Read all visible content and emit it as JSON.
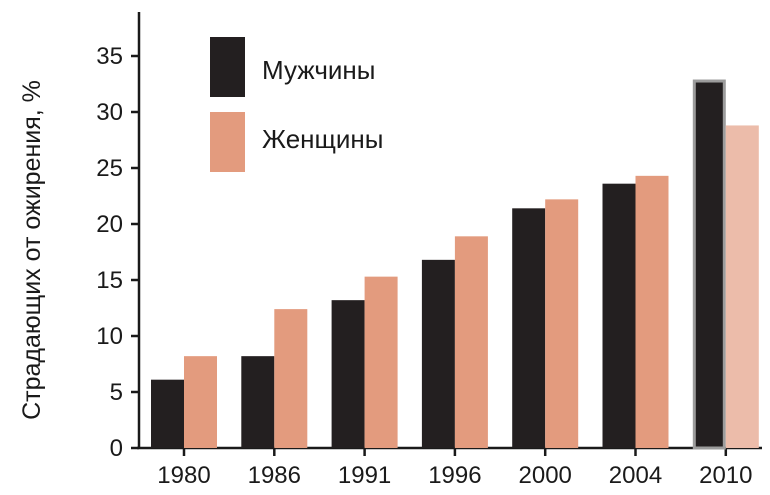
{
  "chart_data": {
    "type": "bar",
    "categories": [
      "1980",
      "1986",
      "1991",
      "1996",
      "2000",
      "2004",
      "2010"
    ],
    "series": [
      {
        "name": "Мужчины",
        "values": [
          6.1,
          8.2,
          13.2,
          16.8,
          21.4,
          23.6,
          32.9
        ],
        "color": "#231f20"
      },
      {
        "name": "Женщины",
        "values": [
          8.2,
          12.4,
          15.3,
          18.9,
          22.2,
          24.3,
          28.8
        ],
        "color": "#e39b7e"
      }
    ],
    "ylabel": "Страдающих от ожирения, %",
    "xlabel": "",
    "ylim": [
      0,
      37.5
    ],
    "yticks": [
      0,
      5,
      10,
      15,
      20,
      25,
      30,
      35
    ],
    "legend_position": "top-left",
    "grid": false,
    "highlight": {
      "category": "2010",
      "men_border_color": "#9c9c9c",
      "women_color": "#ecbcaa"
    },
    "axis_color": "#1a1a1a"
  }
}
